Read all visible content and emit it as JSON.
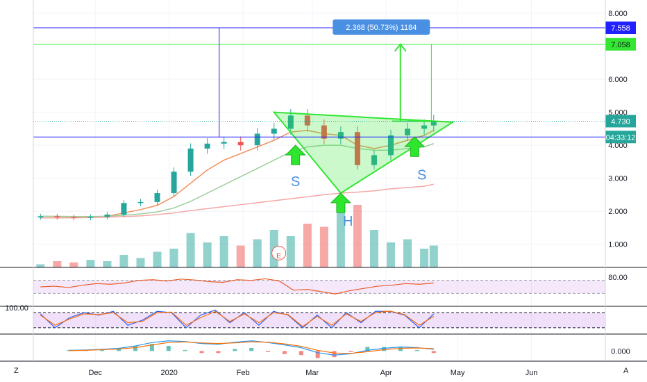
{
  "chart_data": [
    {
      "type": "candlestick",
      "x_ticks": [
        "Dec",
        "2020",
        "Feb",
        "Mar",
        "Apr",
        "May",
        "Jun"
      ],
      "y_ticks": [
        "8.000",
        "6.000",
        "5.000",
        "4.000",
        "3.000",
        "2.000",
        "1.000"
      ],
      "ylim": [
        0.3,
        8.4
      ],
      "grid": true,
      "close_series": [
        {
          "date": "2019-11-08",
          "close": 1.85
        },
        {
          "date": "2019-11-15",
          "close": 1.82
        },
        {
          "date": "2019-11-22",
          "close": 1.8
        },
        {
          "date": "2019-11-29",
          "close": 1.83
        },
        {
          "date": "2019-12-06",
          "close": 1.9
        },
        {
          "date": "2019-12-13",
          "close": 2.25
        },
        {
          "date": "2019-12-20",
          "close": 2.28
        },
        {
          "date": "2019-12-27",
          "close": 2.55
        },
        {
          "date": "2020-01-03",
          "close": 3.2
        },
        {
          "date": "2020-01-10",
          "close": 3.9
        },
        {
          "date": "2020-01-17",
          "close": 4.05
        },
        {
          "date": "2020-01-24",
          "close": 4.1
        },
        {
          "date": "2020-01-31",
          "close": 4.0
        },
        {
          "date": "2020-02-07",
          "close": 4.35
        },
        {
          "date": "2020-02-14",
          "close": 4.5
        },
        {
          "date": "2020-02-21",
          "close": 4.9
        },
        {
          "date": "2020-02-28",
          "close": 4.6
        },
        {
          "date": "2020-03-06",
          "close": 4.2
        },
        {
          "date": "2020-03-13",
          "close": 4.4
        },
        {
          "date": "2020-03-20",
          "close": 3.4
        },
        {
          "date": "2020-03-27",
          "close": 3.7
        },
        {
          "date": "2020-04-03",
          "close": 4.3
        },
        {
          "date": "2020-04-10",
          "close": 4.5
        },
        {
          "date": "2020-04-17",
          "close": 4.6
        },
        {
          "date": "2020-04-21",
          "close": 4.73
        }
      ],
      "moving_averages": [
        {
          "name": "",
          "color": "#f28f5c",
          "values": [
            1.85,
            1.84,
            1.83,
            1.83,
            1.85,
            1.95,
            2.05,
            2.18,
            2.45,
            2.85,
            3.25,
            3.55,
            3.75,
            3.95,
            4.15,
            4.4,
            4.45,
            4.35,
            4.3,
            4.0,
            3.9,
            4.0,
            4.15,
            4.3,
            4.45
          ]
        },
        {
          "name": "",
          "color": "#9ccf9c",
          "values": [
            1.85,
            1.85,
            1.84,
            1.84,
            1.85,
            1.88,
            1.92,
            1.98,
            2.1,
            2.3,
            2.55,
            2.8,
            3.05,
            3.3,
            3.55,
            3.8,
            3.95,
            4.0,
            4.0,
            3.9,
            3.85,
            3.85,
            3.9,
            3.95,
            4.05
          ]
        },
        {
          "name": "",
          "color": "#f5a6a6",
          "values": [
            1.8,
            1.8,
            1.8,
            1.81,
            1.82,
            1.84,
            1.86,
            1.9,
            1.95,
            2.02,
            2.08,
            2.14,
            2.2,
            2.26,
            2.32,
            2.38,
            2.44,
            2.5,
            2.55,
            2.58,
            2.62,
            2.68,
            2.72,
            2.76,
            2.82
          ]
        }
      ],
      "volume": [
        0.05,
        0.1,
        0.08,
        0.12,
        0.1,
        0.2,
        0.15,
        0.25,
        0.3,
        0.55,
        0.4,
        0.5,
        0.35,
        0.45,
        0.6,
        0.5,
        0.7,
        0.65,
        0.9,
        1.0,
        0.6,
        0.4,
        0.45,
        0.3,
        0.35
      ],
      "measure": {
        "label": "2.368 (50.73%) 1184"
      },
      "price_labels": [
        {
          "value": 7.558,
          "label": "7.558",
          "color": "#2121ff"
        },
        {
          "value": 7.058,
          "label": "7.058",
          "color": "#32e632"
        },
        {
          "value": 4.73,
          "label": "4.730",
          "color": "#26a69a"
        },
        {
          "value": 4.25,
          "label": "04:33:12",
          "color": "#26a69a"
        }
      ],
      "annotations": [
        {
          "text": "S",
          "color": "#4a90e2"
        },
        {
          "text": "H",
          "color": "#4a90e2"
        },
        {
          "text": "S",
          "color": "#4a90e2"
        },
        {
          "text": "E",
          "color": "#e35a5a"
        }
      ]
    },
    {
      "type": "line",
      "y_ticks": [
        "80.00"
      ],
      "ylim": [
        0,
        100
      ],
      "band": [
        30,
        70
      ],
      "series": [
        {
          "name": "",
          "color": "#e85d2a",
          "values": [
            50,
            52,
            48,
            55,
            60,
            58,
            62,
            70,
            72,
            68,
            74,
            71,
            66,
            64,
            72,
            70,
            75,
            68,
            40,
            42,
            35,
            28,
            38,
            45,
            52,
            55,
            60,
            58,
            62
          ]
        }
      ]
    },
    {
      "type": "line",
      "y_ticks": [
        "100.00"
      ],
      "ylim": [
        0,
        100
      ],
      "band": [
        20,
        80
      ],
      "series": [
        {
          "name": "",
          "color": "#2962ff",
          "values": [
            75,
            20,
            60,
            80,
            70,
            85,
            30,
            50,
            85,
            80,
            20,
            70,
            90,
            40,
            80,
            30,
            85,
            70,
            20,
            70,
            20,
            80,
            40,
            85,
            85,
            70,
            20,
            75
          ]
        },
        {
          "name": "",
          "color": "#ff6d00",
          "values": [
            70,
            30,
            55,
            75,
            72,
            80,
            40,
            45,
            80,
            82,
            30,
            60,
            85,
            45,
            75,
            40,
            80,
            72,
            25,
            65,
            30,
            75,
            45,
            80,
            86,
            72,
            30,
            65
          ]
        }
      ]
    },
    {
      "type": "bar",
      "y_ticks": [
        "0.000"
      ],
      "ylim": [
        -0.3,
        0.5
      ],
      "series": [
        {
          "name": "",
          "color": "#2196f3",
          "values": [
            0.02,
            0.03,
            0.05,
            0.08,
            0.15,
            0.25,
            0.3,
            0.28,
            0.22,
            0.2,
            0.26,
            0.3,
            0.25,
            0.18,
            0.1,
            -0.05,
            -0.12,
            -0.08,
            0.02,
            0.08,
            0.12,
            0.1,
            0.05
          ]
        },
        {
          "name": "",
          "color": "#ff6d00",
          "values": [
            0.01,
            0.02,
            0.04,
            0.06,
            0.1,
            0.18,
            0.25,
            0.27,
            0.24,
            0.22,
            0.24,
            0.27,
            0.26,
            0.21,
            0.14,
            0.02,
            -0.06,
            -0.07,
            -0.02,
            0.04,
            0.08,
            0.09,
            0.07
          ]
        }
      ]
    }
  ],
  "toolbar": {
    "left_label": "Z",
    "right_label": "A"
  }
}
